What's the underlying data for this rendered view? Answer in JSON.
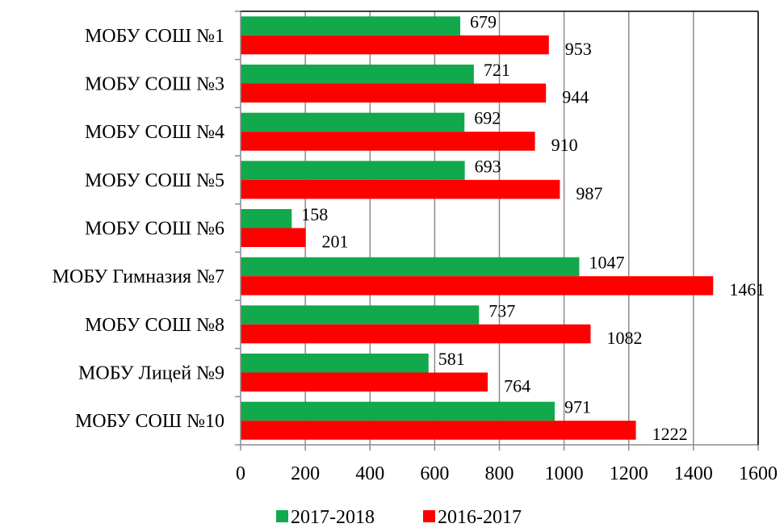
{
  "chart_data": {
    "type": "bar",
    "orientation": "horizontal",
    "categories": [
      "МОБУ СОШ №1",
      "МОБУ СОШ №3",
      "МОБУ СОШ №4",
      "МОБУ СОШ №5",
      "МОБУ СОШ №6",
      "МОБУ Гимназия №7",
      "МОБУ СОШ №8",
      "МОБУ Лицей №9",
      "МОБУ СОШ №10"
    ],
    "series": [
      {
        "name": "2017-2018",
        "color": "#12a84c",
        "values": [
          679,
          721,
          692,
          693,
          158,
          1047,
          737,
          581,
          971
        ]
      },
      {
        "name": "2016-2017",
        "color": "#ff0000",
        "values": [
          953,
          944,
          910,
          987,
          201,
          1461,
          1082,
          764,
          1222
        ]
      }
    ],
    "xlim": [
      0,
      1600
    ],
    "xticks": [
      "0",
      "200",
      "400",
      "600",
      "800",
      "1000",
      "1200",
      "1400",
      "1600"
    ],
    "grid": "vertical",
    "legend": "bottom",
    "title": "",
    "xlabel": "",
    "ylabel": ""
  }
}
